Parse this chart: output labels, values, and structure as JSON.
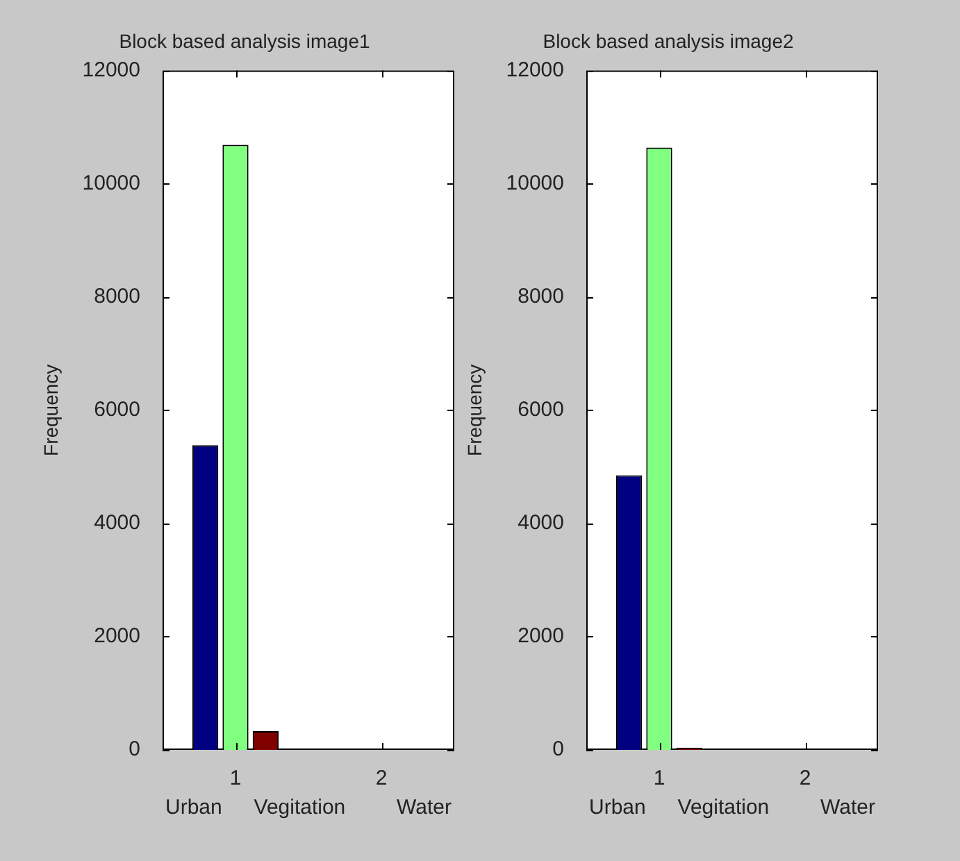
{
  "chart_data": [
    {
      "type": "bar",
      "title": "Block based analysis image1",
      "ylabel": "Frequency",
      "categories": [
        "1",
        "2"
      ],
      "series": [
        {
          "color": "#000080",
          "values": [
            5380,
            null
          ]
        },
        {
          "color": "#80ff80",
          "values": [
            10690,
            null
          ]
        },
        {
          "color": "#800000",
          "values": [
            330,
            null
          ]
        }
      ],
      "ylim": [
        0,
        12000
      ],
      "yticks": [
        0,
        2000,
        4000,
        6000,
        8000,
        10000,
        12000
      ],
      "annotations": [
        "Urban",
        "Vegitation",
        "Water"
      ]
    },
    {
      "type": "bar",
      "title": "Block based analysis image2",
      "ylabel": "Frequency",
      "categories": [
        "1",
        "2"
      ],
      "series": [
        {
          "color": "#000080",
          "values": [
            4850,
            null
          ]
        },
        {
          "color": "#80ff80",
          "values": [
            10640,
            null
          ]
        },
        {
          "color": "#800000",
          "values": [
            40,
            null
          ]
        }
      ],
      "ylim": [
        0,
        12000
      ],
      "yticks": [
        0,
        2000,
        4000,
        6000,
        8000,
        10000,
        12000
      ],
      "annotations": [
        "Urban",
        "Vegitation",
        "Water"
      ]
    }
  ]
}
